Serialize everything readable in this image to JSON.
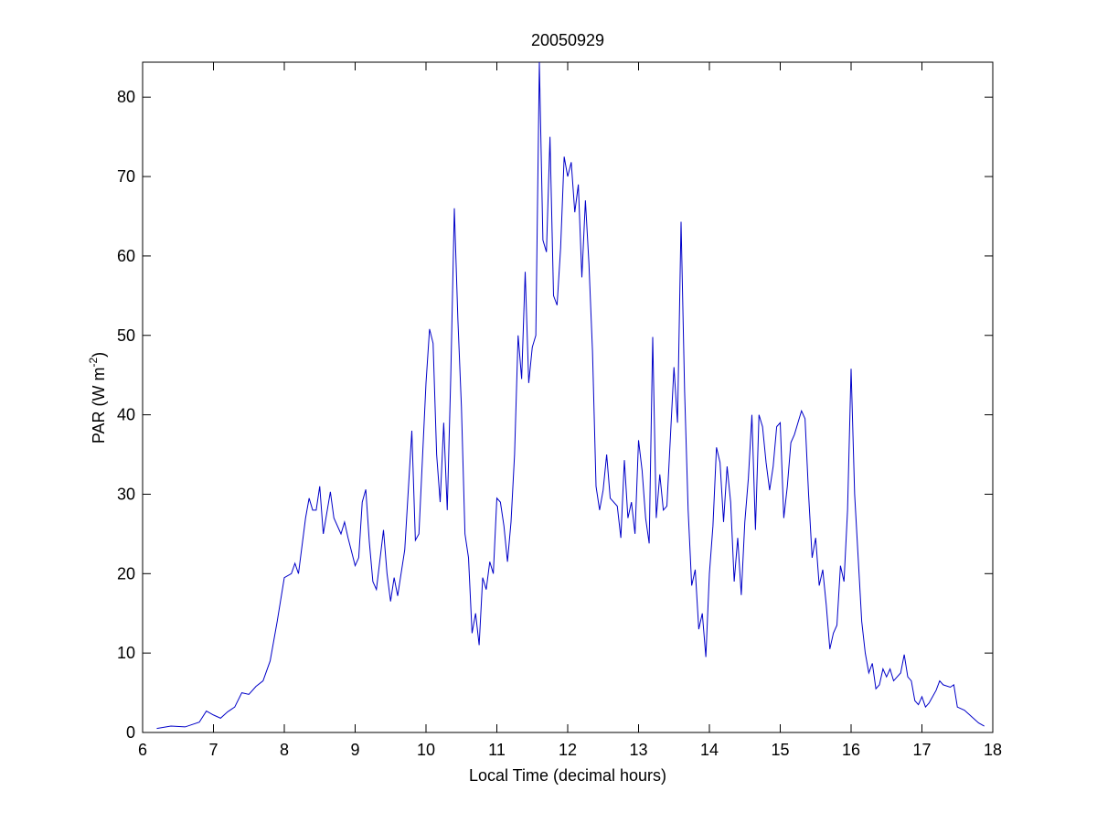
{
  "chart_data": {
    "type": "line",
    "title": "20050929",
    "xlabel": "Local Time (decimal hours)",
    "ylabel": {
      "text": "PAR (W m",
      "sup": "-2",
      "end": ")"
    },
    "color": "#0000c8",
    "xlim": [
      6,
      18
    ],
    "xticks": [
      6,
      7,
      8,
      9,
      10,
      11,
      12,
      13,
      14,
      15,
      16,
      17,
      18
    ],
    "ylim": [
      0,
      84.4
    ],
    "yticks": [
      0,
      10,
      20,
      30,
      40,
      50,
      60,
      70,
      80
    ],
    "grid": false,
    "x": [
      6.2,
      6.4,
      6.6,
      6.8,
      6.9,
      7.0,
      7.1,
      7.2,
      7.3,
      7.4,
      7.5,
      7.6,
      7.7,
      7.8,
      7.9,
      8.0,
      8.1,
      8.15,
      8.2,
      8.3,
      8.35,
      8.4,
      8.45,
      8.5,
      8.55,
      8.65,
      8.7,
      8.8,
      8.85,
      8.9,
      9.0,
      9.05,
      9.1,
      9.15,
      9.2,
      9.25,
      9.3,
      9.4,
      9.45,
      9.5,
      9.55,
      9.6,
      9.7,
      9.8,
      9.85,
      9.9,
      10.0,
      10.05,
      10.1,
      10.15,
      10.2,
      10.25,
      10.3,
      10.35,
      10.4,
      10.45,
      10.5,
      10.55,
      10.6,
      10.65,
      10.7,
      10.75,
      10.8,
      10.85,
      10.9,
      10.95,
      11.0,
      11.05,
      11.1,
      11.15,
      11.2,
      11.25,
      11.3,
      11.35,
      11.4,
      11.45,
      11.5,
      11.55,
      11.6,
      11.65,
      11.7,
      11.75,
      11.8,
      11.85,
      11.9,
      11.95,
      12.0,
      12.05,
      12.1,
      12.15,
      12.2,
      12.25,
      12.3,
      12.35,
      12.4,
      12.45,
      12.5,
      12.55,
      12.6,
      12.7,
      12.75,
      12.8,
      12.85,
      12.9,
      12.95,
      13.0,
      13.05,
      13.1,
      13.15,
      13.2,
      13.25,
      13.3,
      13.35,
      13.4,
      13.5,
      13.55,
      13.6,
      13.65,
      13.7,
      13.75,
      13.8,
      13.85,
      13.9,
      13.95,
      14.0,
      14.05,
      14.1,
      14.15,
      14.2,
      14.25,
      14.3,
      14.35,
      14.4,
      14.45,
      14.5,
      14.55,
      14.6,
      14.65,
      14.7,
      14.75,
      14.8,
      14.85,
      14.9,
      14.95,
      15.0,
      15.05,
      15.1,
      15.15,
      15.2,
      15.3,
      15.35,
      15.4,
      15.45,
      15.5,
      15.55,
      15.6,
      15.65,
      15.7,
      15.75,
      15.8,
      15.85,
      15.9,
      15.95,
      16.0,
      16.05,
      16.1,
      16.15,
      16.2,
      16.25,
      16.3,
      16.35,
      16.4,
      16.45,
      16.5,
      16.55,
      16.6,
      16.7,
      16.75,
      16.8,
      16.85,
      16.9,
      16.95,
      17.0,
      17.05,
      17.1,
      17.2,
      17.25,
      17.3,
      17.4,
      17.45,
      17.5,
      17.6,
      17.7,
      17.8,
      17.88
    ],
    "values": [
      0.5,
      0.8,
      0.7,
      1.3,
      2.7,
      2.2,
      1.8,
      2.6,
      3.2,
      5.0,
      4.8,
      5.8,
      6.5,
      9,
      14,
      19.5,
      20,
      21.3,
      20,
      27,
      29.5,
      28,
      28,
      31,
      25,
      30.3,
      27,
      25,
      26.5,
      24.5,
      21,
      22,
      29,
      30.6,
      24,
      19,
      18,
      25.5,
      20,
      16.5,
      19.5,
      17.2,
      23,
      38,
      24.2,
      25,
      44,
      50.8,
      49,
      35,
      29,
      39,
      28,
      45,
      66,
      52,
      41,
      25,
      22,
      12.5,
      15,
      11,
      19.5,
      18,
      21.5,
      20,
      29.5,
      29,
      26,
      21.5,
      26.5,
      35,
      50,
      44.5,
      58,
      44,
      48.5,
      50,
      84.4,
      62,
      60.5,
      75,
      55,
      53.8,
      61,
      72.5,
      70,
      71.8,
      65.5,
      69,
      57.3,
      67,
      59,
      48,
      31,
      28,
      30.5,
      35,
      29.5,
      28.5,
      24.5,
      34.3,
      27,
      29,
      25,
      36.8,
      33,
      27,
      23.8,
      49.8,
      27,
      32.5,
      28,
      28.5,
      46,
      39,
      64.3,
      43,
      28,
      18.5,
      20.5,
      13,
      15,
      9.5,
      20,
      26,
      35.9,
      34,
      26.5,
      33.5,
      29,
      19,
      24.5,
      17.3,
      26.5,
      32,
      40,
      25.5,
      40,
      38.5,
      34,
      30.5,
      33.5,
      38.5,
      39,
      27,
      31,
      36.5,
      37.5,
      40.5,
      39.5,
      30,
      22,
      24.5,
      18.5,
      20.5,
      16,
      10.5,
      12.5,
      13.5,
      21,
      19,
      28,
      45.8,
      30,
      22,
      14,
      10,
      7.5,
      8.7,
      5.5,
      6,
      8,
      7,
      8,
      6.5,
      7.5,
      9.8,
      7,
      6.5,
      4,
      3.5,
      4.5,
      3.2,
      3.7,
      5.3,
      6.5,
      6,
      5.7,
      6,
      3.2,
      2.8,
      2,
      1.2,
      0.8
    ]
  }
}
